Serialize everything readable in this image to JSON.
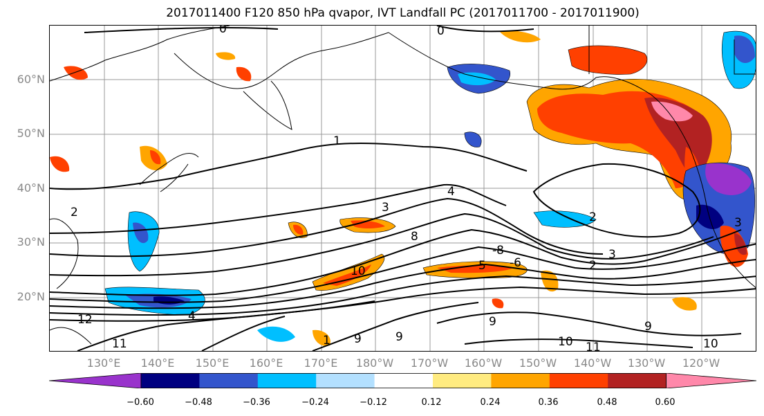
{
  "title": "2017011400 F120 850 hPa qvapor, IVT Landfall PC (2017011700 - 2017011900)",
  "lat_labels": [
    "60°N",
    "50°N",
    "40°N",
    "30°N",
    "20°N"
  ],
  "lon_labels": [
    "130°E",
    "140°E",
    "150°E",
    "160°E",
    "170°E",
    "180°W",
    "170°W",
    "160°W",
    "150°W",
    "140°W",
    "130°W",
    "120°W"
  ],
  "contour_labels": [
    "0",
    "0",
    "1",
    "2",
    "2",
    "3",
    "4",
    "8",
    "10",
    "-8",
    "5",
    "-6",
    "2",
    "3",
    "12",
    "11",
    "9",
    "10",
    "11",
    "10",
    "9",
    "1",
    "9",
    "4",
    "9",
    "3"
  ],
  "colorbar": {
    "tick_labels": [
      "−0.60",
      "−0.48",
      "−0.36",
      "−0.24",
      "−0.12",
      "0.12",
      "0.24",
      "0.36",
      "0.48",
      "0.60"
    ],
    "colors": [
      "#9933cc",
      "#000080",
      "#3355cc",
      "#00bfff",
      "#b3e0ff",
      "#ffffff",
      "#ffeb80",
      "#ffa500",
      "#ff4000",
      "#b22222",
      "#ff88aa"
    ]
  }
}
